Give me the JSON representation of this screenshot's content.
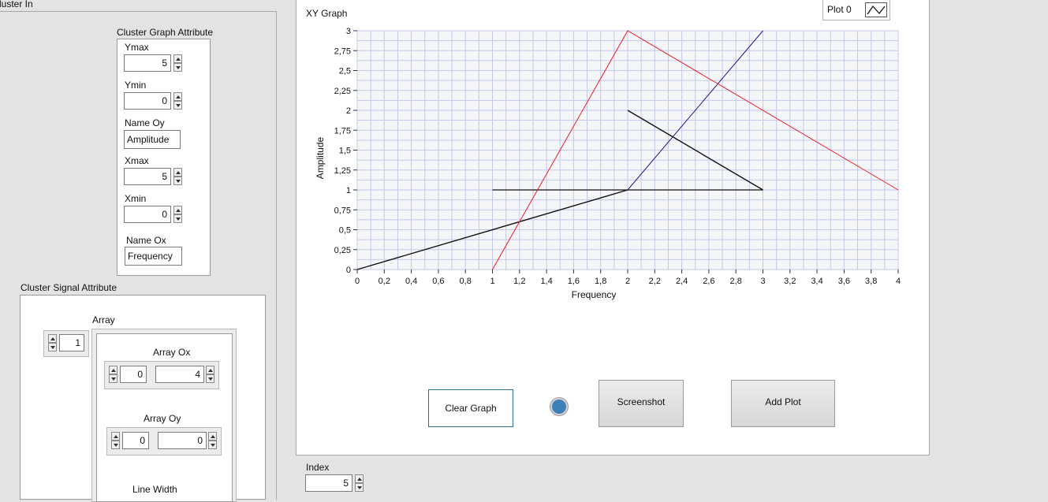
{
  "cluster_in": {
    "title": "luster In"
  },
  "graph_attr": {
    "title": "Cluster Graph Attribute",
    "ymax_label": "Ymax",
    "ymax_value": "5",
    "ymin_label": "Ymin",
    "ymin_value": "0",
    "name_oy_label": "Name Oy",
    "name_oy_value": "Amplitude",
    "xmax_label": "Xmax",
    "xmax_value": "5",
    "xmin_label": "Xmin",
    "xmin_value": "0",
    "name_ox_label": "Name Ox",
    "name_ox_value": "Frequency"
  },
  "signal_attr": {
    "title": "Cluster Signal Attribute",
    "array_label": "Array",
    "array_index": "1",
    "array_ox_label": "Array Ox",
    "array_ox_index": "0",
    "array_ox_value": "4",
    "array_oy_label": "Array Oy",
    "array_oy_index": "0",
    "array_oy_value": "0",
    "line_width_label": "Line Width"
  },
  "graph": {
    "title": "XY Graph",
    "legend_label": "Plot 0"
  },
  "buttons": {
    "clear": "Clear Graph",
    "screenshot": "Screenshot",
    "add_plot": "Add Plot"
  },
  "index": {
    "label": "Index",
    "value": "5"
  },
  "colors": {
    "grid": "#c5c8ec",
    "plot_bg": "#f4f6f7",
    "red": "#e8202a",
    "blue": "#1a1a8c",
    "black": "#111111",
    "led": "#3d7fb8"
  },
  "chart_data": {
    "type": "line",
    "title": "XY Graph",
    "xlabel": "Frequency",
    "ylabel": "Amplitude",
    "xlim": [
      0,
      4
    ],
    "ylim": [
      0,
      3
    ],
    "grid": true,
    "legend": "top-right",
    "x_ticks": [
      "0",
      "0,2",
      "0,4",
      "0,6",
      "0,8",
      "1",
      "1,2",
      "1,4",
      "1,6",
      "1,8",
      "2",
      "2,2",
      "2,4",
      "2,6",
      "2,8",
      "3",
      "3,2",
      "3,4",
      "3,6",
      "3,8",
      "4"
    ],
    "y_ticks": [
      "0",
      "0,25",
      "0,5",
      "0,75",
      "1",
      "1,25",
      "1,5",
      "1,75",
      "2",
      "2,25",
      "2,5",
      "2,75",
      "3"
    ],
    "series": [
      {
        "name": "Plot 0",
        "color": "#111111",
        "width": 1.4,
        "points": [
          [
            0,
            0
          ],
          [
            2,
            1
          ]
        ]
      },
      {
        "color": "#111111",
        "width": 1.2,
        "points": [
          [
            1,
            1
          ],
          [
            3,
            1
          ]
        ]
      },
      {
        "color": "#111111",
        "width": 1.4,
        "points": [
          [
            2,
            2
          ],
          [
            3,
            1
          ]
        ]
      },
      {
        "color": "#1a1a8c",
        "width": 1,
        "points": [
          [
            2,
            1
          ],
          [
            3,
            3
          ]
        ]
      },
      {
        "color": "#e8202a",
        "width": 1,
        "points": [
          [
            1,
            0
          ],
          [
            2,
            3
          ],
          [
            4,
            1
          ]
        ]
      }
    ]
  }
}
